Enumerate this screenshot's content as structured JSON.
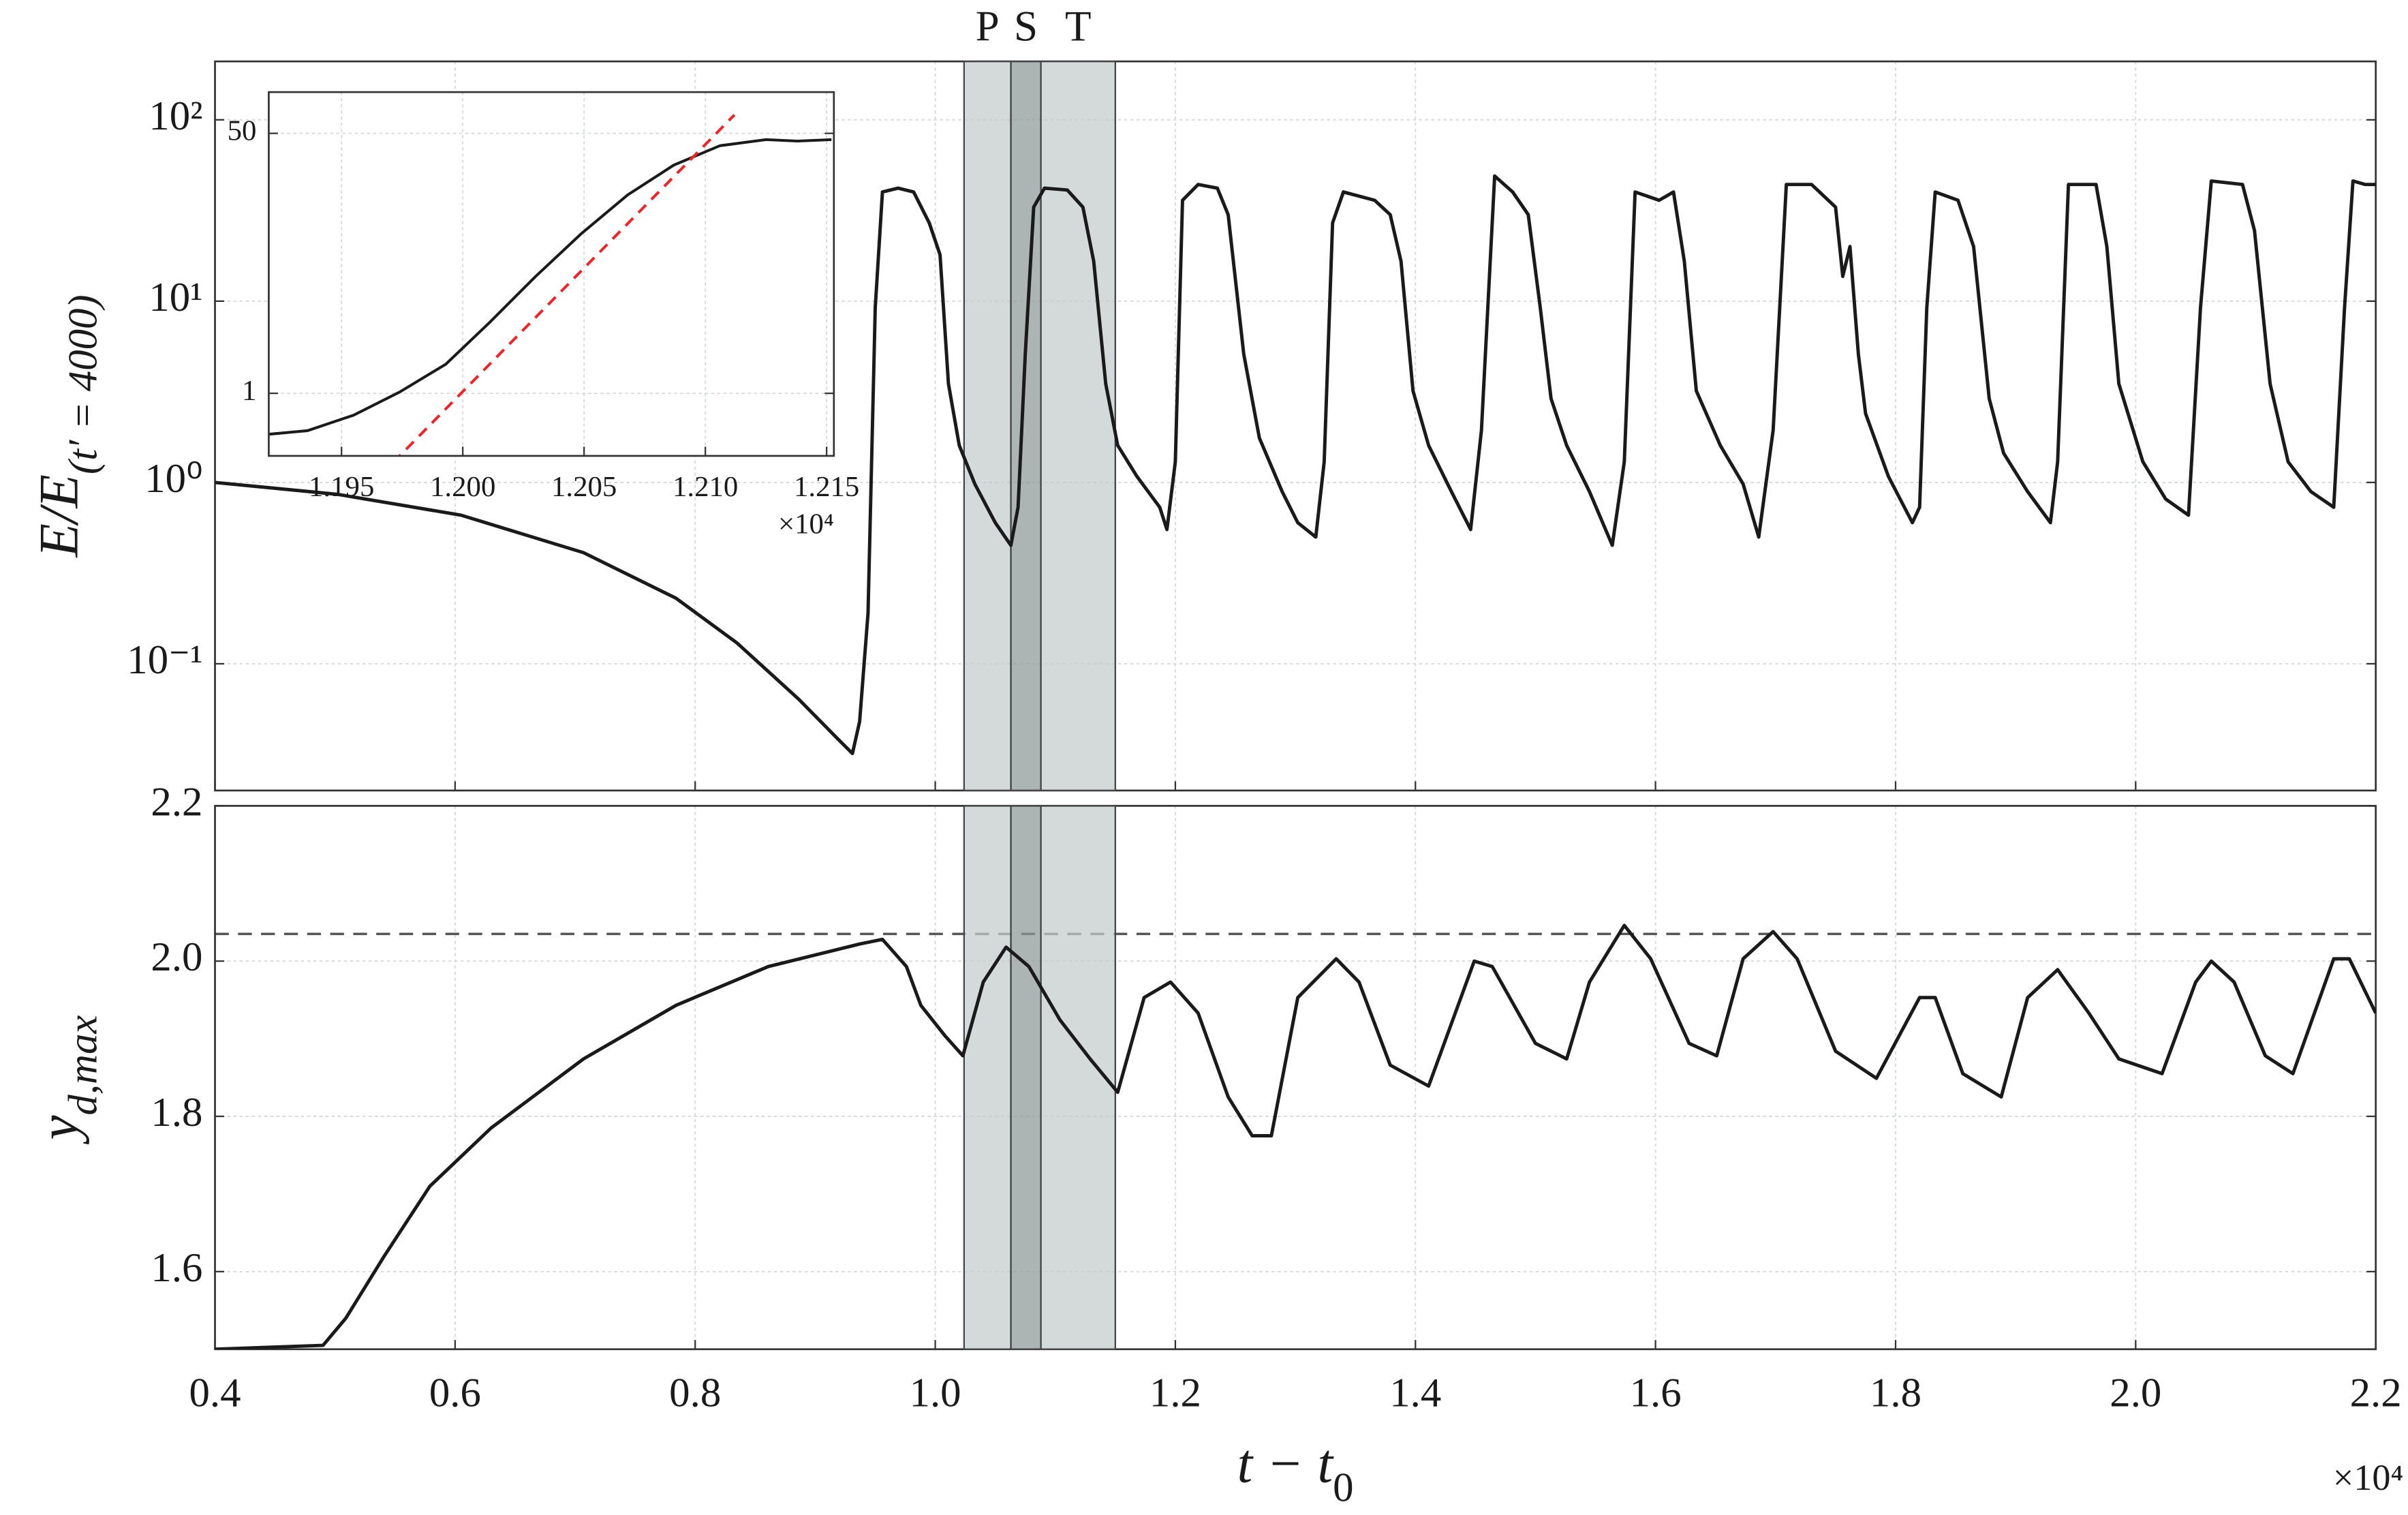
{
  "chart_data": [
    {
      "type": "line",
      "log_y": true,
      "grid": true,
      "xtick_labels": false,
      "ylabel": {
        "base": "E/E",
        "sub": "(t′ = 4000)"
      },
      "xlim": [
        0.4,
        2.2
      ],
      "xticks": [
        0.4,
        0.6,
        0.8,
        {
          "value": 1,
          "label": "1.0"
        },
        1.2,
        1.4,
        1.6,
        1.8,
        {
          "value": 2,
          "label": "2.0"
        },
        2.2
      ],
      "ylim": [
        0.02,
        210
      ],
      "yticks": [
        {
          "value": 0.1,
          "label": "10⁻¹"
        },
        {
          "value": 1,
          "label": "10⁰"
        },
        {
          "value": 10,
          "label": "10¹"
        },
        {
          "value": 100,
          "label": "10²"
        }
      ],
      "regions": [
        {
          "label": "P",
          "range": [
            1.024,
            1.063
          ],
          "color": "#c3caca"
        },
        {
          "label": "S",
          "range": [
            1.063,
            1.088
          ],
          "color": "#8e9797"
        },
        {
          "label": "T",
          "range": [
            1.088,
            1.15
          ],
          "color": "#c3caca"
        }
      ],
      "series": [
        {
          "color": "#1a1a1a",
          "style": "solid",
          "x": [
            0.4,
            0.502,
            0.605,
            0.707,
            0.784,
            0.835,
            0.886,
            0.918,
            0.931,
            0.937,
            0.944,
            0.95,
            0.956,
            0.969,
            0.982,
            0.995,
            1.004,
            1.011,
            1.02,
            1.033,
            1.05,
            1.063,
            1.069,
            1.075,
            1.082,
            1.091,
            1.11,
            1.123,
            1.132,
            1.142,
            1.152,
            1.168,
            1.187,
            1.193,
            1.2,
            1.206,
            1.219,
            1.235,
            1.244,
            1.257,
            1.27,
            1.289,
            1.302,
            1.317,
            1.324,
            1.331,
            1.34,
            1.366,
            1.379,
            1.388,
            1.398,
            1.411,
            1.43,
            1.446,
            1.455,
            1.466,
            1.481,
            1.494,
            1.504,
            1.513,
            1.526,
            1.545,
            1.564,
            1.574,
            1.583,
            1.603,
            1.615,
            1.624,
            1.634,
            1.654,
            1.673,
            1.686,
            1.698,
            1.709,
            1.73,
            1.75,
            1.756,
            1.762,
            1.769,
            1.775,
            1.794,
            1.814,
            1.82,
            1.826,
            1.833,
            1.852,
            1.865,
            1.878,
            1.89,
            1.91,
            1.929,
            1.935,
            1.944,
            1.967,
            1.976,
            1.986,
            2.006,
            2.025,
            2.044,
            2.054,
            2.063,
            2.089,
            2.099,
            2.112,
            2.127,
            2.146,
            2.165,
            2.174,
            2.181,
            2.191,
            2.2
          ],
          "values": [
            1.0,
            0.86,
            0.66,
            0.41,
            0.23,
            0.13,
            0.064,
            0.039,
            0.032,
            0.048,
            0.19,
            9.2,
            40,
            42,
            40,
            27,
            18,
            3.5,
            1.6,
            0.98,
            0.6,
            0.45,
            0.73,
            5.1,
            33,
            42,
            41,
            33,
            16.6,
            3.5,
            1.6,
            1.08,
            0.73,
            0.55,
            1.3,
            36,
            44,
            42,
            30,
            5.1,
            1.76,
            0.89,
            0.6,
            0.5,
            1.3,
            27,
            40,
            36,
            30,
            16.6,
            3.2,
            1.6,
            0.89,
            0.55,
            1.94,
            49,
            40,
            30,
            9.2,
            2.9,
            1.6,
            0.89,
            0.45,
            1.3,
            40,
            36,
            40,
            16.6,
            3.2,
            1.6,
            0.98,
            0.5,
            1.94,
            44,
            44,
            33,
            13.7,
            20,
            5.1,
            2.4,
            1.08,
            0.6,
            0.73,
            9.2,
            40,
            36,
            20,
            2.9,
            1.45,
            0.89,
            0.6,
            1.3,
            44,
            44,
            20,
            3.5,
            1.3,
            0.81,
            0.66,
            9.2,
            46,
            44,
            24.5,
            3.5,
            1.3,
            0.89,
            0.73,
            9.2,
            46,
            44,
            44
          ]
        }
      ]
    },
    {
      "type": "line",
      "log_y": false,
      "grid": true,
      "xtick_labels": true,
      "ylabel": {
        "base": "y",
        "sub": "d,max"
      },
      "xlabel": {
        "base": "t − t",
        "sub": "0"
      },
      "x_multiplier": "×10⁴",
      "xlim": [
        0.4,
        2.2
      ],
      "xticks": [
        0.4,
        0.6,
        0.8,
        {
          "value": 1,
          "label": "1.0"
        },
        1.2,
        1.4,
        1.6,
        1.8,
        {
          "value": 2,
          "label": "2.0"
        },
        2.2
      ],
      "ylim": [
        1.5,
        2.2
      ],
      "yticks": [
        1.6,
        1.8,
        {
          "value": 2,
          "label": "2.0"
        },
        2.2
      ],
      "reference_line": {
        "value": 2.035,
        "color": "#555555"
      },
      "series": [
        {
          "color": "#1a1a1a",
          "style": "solid",
          "x": [
            0.4,
            0.49,
            0.509,
            0.541,
            0.579,
            0.63,
            0.707,
            0.784,
            0.861,
            0.937,
            0.956,
            0.976,
            0.988,
            1.008,
            1.023,
            1.04,
            1.059,
            1.078,
            1.104,
            1.129,
            1.152,
            1.174,
            1.196,
            1.219,
            1.244,
            1.264,
            1.28,
            1.302,
            1.334,
            1.353,
            1.379,
            1.411,
            1.449,
            1.464,
            1.5,
            1.526,
            1.545,
            1.574,
            1.596,
            1.628,
            1.651,
            1.673,
            1.698,
            1.718,
            1.75,
            1.784,
            1.82,
            1.833,
            1.856,
            1.888,
            1.91,
            1.935,
            1.961,
            1.986,
            2.022,
            2.05,
            2.063,
            2.082,
            2.108,
            2.131,
            2.165,
            2.178,
            2.2
          ],
          "values": [
            1.5,
            1.505,
            1.54,
            1.62,
            1.71,
            1.785,
            1.874,
            1.943,
            1.993,
            2.022,
            2.028,
            1.993,
            1.943,
            1.904,
            1.878,
            1.973,
            2.018,
            1.993,
            1.924,
            1.874,
            1.831,
            1.953,
            1.973,
            1.933,
            1.825,
            1.775,
            1.775,
            1.953,
            2.003,
            1.973,
            1.866,
            1.839,
            2.0,
            1.993,
            1.894,
            1.874,
            1.973,
            2.046,
            2.003,
            1.894,
            1.878,
            2.003,
            2.038,
            2.003,
            1.884,
            1.849,
            1.953,
            1.953,
            1.855,
            1.825,
            1.953,
            1.989,
            1.933,
            1.874,
            1.855,
            1.973,
            2.0,
            1.973,
            1.878,
            1.855,
            2.003,
            2.003,
            1.933
          ]
        }
      ]
    },
    {
      "type": "line",
      "log_y": true,
      "grid": true,
      "xtick_labels": true,
      "x_multiplier": "×10⁴",
      "xlim": [
        1.192,
        1.2153
      ],
      "xticks": [
        1.195,
        {
          "value": 1.2,
          "label": "1.200"
        },
        1.205,
        {
          "value": 1.21,
          "label": "1.210"
        },
        1.215
      ],
      "ylim": [
        0.39,
        93
      ],
      "yticks": [
        1,
        50
      ],
      "series": [
        {
          "color": "#1a1a1a",
          "style": "solid",
          "x": [
            1.192,
            1.1936,
            1.1955,
            1.1974,
            1.1993,
            1.2011,
            1.203,
            1.2049,
            1.2068,
            1.2087,
            1.2106,
            1.2125,
            1.2138,
            1.2152
          ],
          "values": [
            0.54,
            0.57,
            0.72,
            1.02,
            1.55,
            2.9,
            5.8,
            11.1,
            19.8,
            31,
            41.5,
            45.5,
            44.5,
            45.5
          ]
        },
        {
          "color": "#e8262b",
          "style": "dashed",
          "x": [
            1.1966,
            1.2112
          ],
          "values": [
            0.29,
            66
          ]
        }
      ]
    }
  ]
}
